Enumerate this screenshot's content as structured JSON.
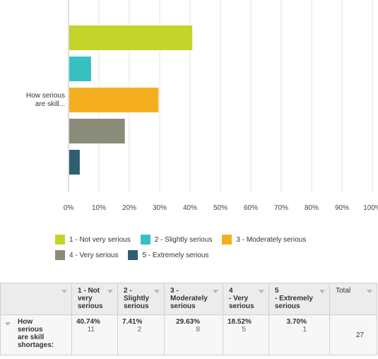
{
  "chart_data": {
    "type": "bar",
    "orientation": "horizontal",
    "category_label": "How serious are skill...",
    "series": [
      {
        "name": "1 - Not very serious",
        "value": 40.74,
        "color": "#c5d42a"
      },
      {
        "name": "2 - Slightly serious",
        "value": 7.41,
        "color": "#37c0c2"
      },
      {
        "name": "3 - Moderately serious",
        "value": 29.63,
        "color": "#f6ae21"
      },
      {
        "name": "4 - Very serious",
        "value": 18.52,
        "color": "#8a8b79"
      },
      {
        "name": "5 - Extremely serious",
        "value": 3.7,
        "color": "#2f5e72"
      }
    ],
    "xlim": [
      0,
      100
    ],
    "x_ticks": [
      "0%",
      "10%",
      "20%",
      "30%",
      "40%",
      "50%",
      "60%",
      "70%",
      "80%",
      "90%",
      "100%"
    ],
    "grid": true,
    "legend_position": "bottom"
  },
  "table": {
    "headers": [
      "1 - Not very serious",
      "2 - Slightly serious",
      "3 - Moderately serious",
      "4 - Very serious",
      "5 - Extremely serious",
      "Total"
    ],
    "header_lines": [
      [
        "1 - Not",
        "very",
        "serious"
      ],
      [
        "2 -",
        "Slightly",
        "serious"
      ],
      [
        "3 -",
        "Moderately",
        "serious"
      ],
      [
        "4",
        "- Very",
        "serious"
      ],
      [
        "5",
        "- Extremely",
        "serious"
      ]
    ],
    "row": {
      "label_lines": [
        "How",
        "serious",
        "are skill",
        "shortages:"
      ],
      "percents": [
        "40.74%",
        "7.41%",
        "29.63%",
        "18.52%",
        "3.70%"
      ],
      "counts": [
        "11",
        "2",
        "8",
        "5",
        "1"
      ],
      "total": "27"
    }
  }
}
